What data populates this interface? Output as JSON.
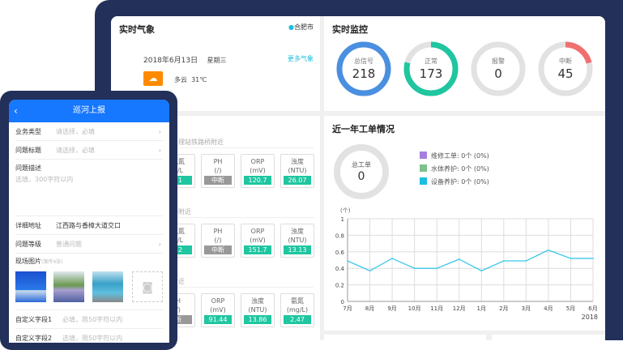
{
  "weather": {
    "title": "实时气象",
    "city": "合肥市",
    "date": "2018年6月13日",
    "weekday": "星期三",
    "more": "更多气象",
    "condition": "多云",
    "temp": "31℃",
    "icon": "partly-cloudy-icon",
    "icon_color": "#ff8a00"
  },
  "monitor": {
    "title": "实时监控",
    "rings": [
      {
        "label": "总信号",
        "value": "218",
        "fraction": 1,
        "color": "#4a8fe0"
      },
      {
        "label": "正常",
        "value": "173",
        "fraction": 0.79,
        "color": "#1fc6a0"
      },
      {
        "label": "报警",
        "value": "0",
        "fraction": 0,
        "color": "#e0e0e0"
      },
      {
        "label": "中断",
        "value": "45",
        "fraction": 0.21,
        "color": "#f07070"
      }
    ]
  },
  "stations": [
    {
      "name": "处理站铁路桥附近",
      "metrics": [
        {
          "n": "氨氮",
          "u": "g/L",
          "v": "71"
        },
        {
          "n": "PH",
          "u": "(/)",
          "v": "中断",
          "off": true
        },
        {
          "n": "ORP",
          "u": "(mV)",
          "v": "120.7"
        },
        {
          "n": "浊度",
          "u": "(NTU)",
          "v": "26.07"
        }
      ]
    },
    {
      "name": "桥附近",
      "metrics": [
        {
          "n": "氨氮",
          "u": "g/L",
          "v": "42"
        },
        {
          "n": "PH",
          "u": "(/)",
          "v": "中断",
          "off": true
        },
        {
          "n": "ORP",
          "u": "(mV)",
          "v": "151.7"
        },
        {
          "n": "浊度",
          "u": "(NTU)",
          "v": "13.13"
        }
      ]
    },
    {
      "name": "附近",
      "metrics": [
        {
          "n": "H",
          "u": "/)",
          "v": "断",
          "off": true
        },
        {
          "n": "ORP",
          "u": "(mV)",
          "v": "91.44"
        },
        {
          "n": "浊度",
          "u": "(NTU)",
          "v": "13.86"
        },
        {
          "n": "氨氮",
          "u": "(mg/L)",
          "v": "2.47"
        }
      ]
    }
  ],
  "workorders": {
    "title": "近一年工单情况",
    "total_label": "总工单",
    "total": "0",
    "legend": [
      {
        "label": "维修工单:  0个  (0%)",
        "color": "#a77ee0"
      },
      {
        "label": "水体养护:  0个  (0%)",
        "color": "#7cc28a"
      },
      {
        "label": "设备养护:  0个  (0%)",
        "color": "#1bbde0"
      }
    ]
  },
  "chart_data": {
    "type": "line",
    "ylabel": "(个)",
    "categories": [
      "7月",
      "8月",
      "9月",
      "10月",
      "11月",
      "12月",
      "1月",
      "2月",
      "3月",
      "4月",
      "5月",
      "6月"
    ],
    "x_sublabel": "2018",
    "values": [
      0.49,
      0.37,
      0.52,
      0.4,
      0.4,
      0.51,
      0.37,
      0.49,
      0.49,
      0.62,
      0.52,
      0.52
    ],
    "ylim": [
      0,
      1
    ],
    "yticks": [
      "0",
      "0.2",
      "0.4",
      "0.6",
      "0.8",
      "1"
    ],
    "grid": true,
    "color": "#3cc8e8"
  },
  "phone": {
    "title": "巡河上报",
    "rows": [
      {
        "k": "业务类型",
        "p": "请选择，必填",
        "chev": true
      },
      {
        "k": "问题标题",
        "p": "请选择，必填",
        "chev": true
      }
    ],
    "desc_label": "问题描述",
    "desc_placeholder": "选填，300字符以内",
    "address_label": "详细地址",
    "address_value": "江西路与香樟大道交口",
    "level_label": "问题等级",
    "level_value": "普通问题",
    "photos_label": "现场图片",
    "photos_hint": "(限传4张)",
    "custom1_label": "自定义字段1",
    "custom1_placeholder": "必填，限50字符以内",
    "custom2_label": "自定义字段2",
    "custom2_placeholder": "选填，限50字符以内"
  }
}
